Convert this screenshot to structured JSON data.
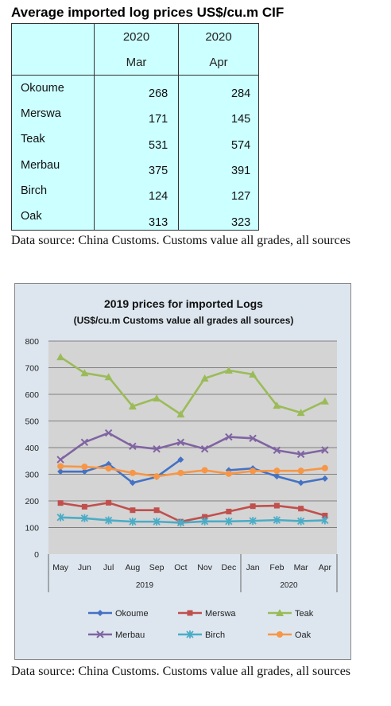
{
  "table": {
    "title": "Average imported log prices US$/cu.m CIF",
    "columns": [
      {
        "year": "2020",
        "month": "Mar"
      },
      {
        "year": "2020",
        "month": "Apr"
      }
    ],
    "rows": [
      {
        "species": "Okoume",
        "mar": "268",
        "apr": "284"
      },
      {
        "species": "Merswa",
        "mar": "171",
        "apr": "145"
      },
      {
        "species": "Teak",
        "mar": "531",
        "apr": "574"
      },
      {
        "species": "Merbau",
        "mar": "375",
        "apr": "391"
      },
      {
        "species": "Birch",
        "mar": "124",
        "apr": "127"
      },
      {
        "species": "Oak",
        "mar": "313",
        "apr": "323"
      }
    ]
  },
  "note1": "Data source: China Customs. Customs value all grades, all sources",
  "note2": "Data source: China Customs. Customs value all grades, all sources",
  "chart_data": {
    "type": "line",
    "title": "2019 prices for imported Logs",
    "subtitle": "(US$/cu.m Customs value all grades all sources)",
    "xlabel": "",
    "ylabel": "",
    "ylim": [
      0,
      800
    ],
    "yticks": [
      "0",
      "100",
      "200",
      "300",
      "400",
      "500",
      "600",
      "700",
      "800"
    ],
    "grid": true,
    "legend_position": "bottom",
    "categories": [
      "May",
      "Jun",
      "Jul",
      "Aug",
      "Sep",
      "Oct",
      "Nov",
      "Dec",
      "Jan",
      "Feb",
      "Mar",
      "Apr"
    ],
    "year_groups": [
      {
        "label": "2019",
        "count": 8
      },
      {
        "label": "2020",
        "count": 4
      }
    ],
    "series": [
      {
        "name": "Okoume",
        "color": "#4472c4",
        "marker": "diamond",
        "values": [
          310,
          310,
          338,
          268,
          290,
          355,
          null,
          315,
          322,
          292,
          268,
          284
        ]
      },
      {
        "name": "Merswa",
        "color": "#c0504d",
        "marker": "square",
        "values": [
          192,
          178,
          193,
          165,
          165,
          122,
          140,
          160,
          180,
          182,
          171,
          145
        ]
      },
      {
        "name": "Teak",
        "color": "#9bbb59",
        "marker": "triangle",
        "values": [
          740,
          680,
          665,
          555,
          585,
          525,
          660,
          690,
          675,
          558,
          531,
          574
        ]
      },
      {
        "name": "Merbau",
        "color": "#8064a2",
        "marker": "x",
        "values": [
          355,
          420,
          455,
          405,
          395,
          420,
          395,
          440,
          435,
          390,
          375,
          391
        ]
      },
      {
        "name": "Birch",
        "color": "#4bacc6",
        "marker": "star",
        "values": [
          138,
          135,
          127,
          122,
          122,
          118,
          123,
          123,
          125,
          128,
          124,
          127
        ]
      },
      {
        "name": "Oak",
        "color": "#f79646",
        "marker": "circle",
        "values": [
          330,
          328,
          322,
          305,
          292,
          305,
          315,
          302,
          312,
          313,
          313,
          323
        ]
      }
    ]
  }
}
